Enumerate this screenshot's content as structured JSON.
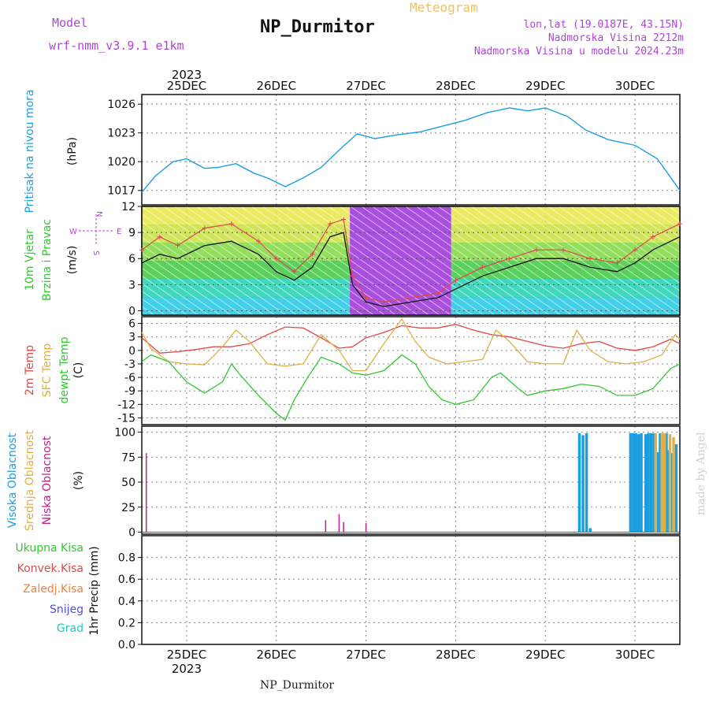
{
  "header": {
    "model_label": "Model",
    "model_run": "wrf-nmm_v3.9.1 e1km",
    "title": "NP_Durmitor",
    "subtitle": "Meteogram",
    "location": "lon,lat (19.0187E, 43.15N)",
    "elevation": "Nadmorska Visina 2212m",
    "model_elevation": "Nadmorska Visina u modelu 2024.23m"
  },
  "footer": {
    "station": "NP_Durmitor",
    "credit": "made by Angel"
  },
  "time_axis": {
    "year": "2023",
    "days": [
      "25DEC",
      "26DEC",
      "27DEC",
      "28DEC",
      "29DEC",
      "30DEC"
    ]
  },
  "colors": {
    "pressure": "#1aa0e0",
    "temp2m": "#e04848",
    "sfc_temp": "#e0b048",
    "dewpt": "#30c830",
    "wind_speed": "#111111",
    "gust": "#e04848",
    "high_cloud": "#1aa0e0",
    "mid_cloud": "#e0b048",
    "low_cloud": "#c0208a"
  },
  "chart_data": [
    {
      "type": "line",
      "panel": "pressure",
      "ylabel_left": "Pritisak na nivou mora",
      "ylabel_unit": "(hPa)",
      "ylim": [
        1015.5,
        1027
      ],
      "yticks": [
        1017,
        1020,
        1023,
        1026
      ],
      "grid": true,
      "x_days": [
        24.5,
        24.65,
        24.85,
        25.0,
        25.2,
        25.35,
        25.55,
        25.75,
        25.9,
        26.1,
        26.3,
        26.5,
        26.7,
        26.9,
        27.1,
        27.35,
        27.6,
        27.85,
        28.1,
        28.35,
        28.6,
        28.8,
        29.0,
        29.25,
        29.45,
        29.7,
        30.0,
        30.25,
        30.5
      ],
      "values": [
        1016.8,
        1018.5,
        1020.0,
        1020.3,
        1019.3,
        1019.4,
        1019.8,
        1018.8,
        1018.3,
        1017.4,
        1018.3,
        1019.4,
        1021.2,
        1022.9,
        1022.4,
        1022.8,
        1023.1,
        1023.7,
        1024.3,
        1025.1,
        1025.6,
        1025.3,
        1025.6,
        1024.7,
        1023.3,
        1022.3,
        1021.7,
        1020.3,
        1017.0
      ]
    },
    {
      "type": "line",
      "panel": "wind",
      "ylabel_left": "10m Vjetar",
      "ylabel_left2": "Brzina i Pravac",
      "ylabel_unit": "(m/s)",
      "compass": [
        "N",
        "W",
        "E",
        "S"
      ],
      "ylim": [
        -0.5,
        12
      ],
      "yticks": [
        0,
        3,
        6,
        9,
        12
      ],
      "grid": true,
      "series": [
        {
          "name": "wind_speed",
          "x_days": [
            24.5,
            24.7,
            24.9,
            25.2,
            25.5,
            25.8,
            26.0,
            26.2,
            26.4,
            26.6,
            26.75,
            26.85,
            27.0,
            27.2,
            27.5,
            27.8,
            28.0,
            28.3,
            28.6,
            28.9,
            29.2,
            29.5,
            29.8,
            30.0,
            30.2,
            30.5
          ],
          "values": [
            5.5,
            6.5,
            6.0,
            7.5,
            8.0,
            6.5,
            4.5,
            3.5,
            5.0,
            8.5,
            9.0,
            3.0,
            1.0,
            0.5,
            1.0,
            1.5,
            2.5,
            4.0,
            5.0,
            6.0,
            6.0,
            5.0,
            4.5,
            5.5,
            7.0,
            8.5
          ]
        },
        {
          "name": "gust",
          "x_days": [
            24.5,
            24.7,
            24.9,
            25.2,
            25.5,
            25.8,
            26.0,
            26.2,
            26.4,
            26.6,
            26.75,
            26.85,
            27.0,
            27.2,
            27.5,
            27.8,
            28.0,
            28.3,
            28.6,
            28.9,
            29.2,
            29.5,
            29.8,
            30.0,
            30.2,
            30.5
          ],
          "values": [
            7.0,
            8.5,
            7.5,
            9.5,
            10.0,
            8.0,
            6.0,
            4.5,
            6.5,
            10.0,
            10.5,
            4.0,
            1.5,
            1.0,
            1.5,
            2.0,
            3.5,
            5.0,
            6.0,
            7.0,
            7.0,
            6.0,
            5.5,
            7.0,
            8.5,
            10.0
          ]
        }
      ]
    },
    {
      "type": "line",
      "panel": "temperature",
      "ylabel_left": "2m Temp",
      "ylabel_left2": "SFC Temp",
      "ylabel_left3": "dewpt Temp",
      "ylabel_unit": "(C)",
      "ylim": [
        -16.5,
        7.5
      ],
      "yticks": [
        -15,
        -12,
        -9,
        -6,
        -3,
        0,
        3,
        6
      ],
      "grid": true,
      "series": [
        {
          "name": "temp2m",
          "x_days": [
            24.5,
            24.7,
            24.9,
            25.1,
            25.3,
            25.5,
            25.7,
            25.9,
            26.1,
            26.3,
            26.5,
            26.7,
            26.85,
            27.0,
            27.2,
            27.4,
            27.6,
            27.8,
            28.0,
            28.2,
            28.4,
            28.6,
            28.8,
            29.0,
            29.2,
            29.4,
            29.6,
            29.8,
            30.0,
            30.2,
            30.4,
            30.5
          ],
          "values": [
            2.8,
            -0.6,
            -0.3,
            0.2,
            0.8,
            0.8,
            1.5,
            3.5,
            5.2,
            5.0,
            2.8,
            0.5,
            0.8,
            2.8,
            4.0,
            5.5,
            5.0,
            5.0,
            5.8,
            4.5,
            3.5,
            3.0,
            2.0,
            1.0,
            0.5,
            1.5,
            2.0,
            0.5,
            0.0,
            0.8,
            2.5,
            1.5
          ]
        },
        {
          "name": "sfc_temp",
          "x_days": [
            24.5,
            24.6,
            24.8,
            25.0,
            25.2,
            25.4,
            25.55,
            25.7,
            25.9,
            26.1,
            26.3,
            26.5,
            26.7,
            26.85,
            27.0,
            27.2,
            27.4,
            27.55,
            27.7,
            27.9,
            28.1,
            28.3,
            28.45,
            28.6,
            28.8,
            29.0,
            29.2,
            29.35,
            29.5,
            29.7,
            29.9,
            30.1,
            30.3,
            30.45,
            30.5
          ],
          "values": [
            4.0,
            0.5,
            -2.5,
            -3.0,
            -3.2,
            0.8,
            4.5,
            2.0,
            -3.0,
            -3.5,
            -3.0,
            3.5,
            0.0,
            -4.5,
            -4.5,
            1.5,
            7.0,
            2.0,
            -1.5,
            -3.0,
            -2.5,
            -2.0,
            4.5,
            2.0,
            -2.5,
            -3.0,
            -3.0,
            4.5,
            0.0,
            -2.5,
            -3.0,
            -2.5,
            -1.0,
            3.5,
            2.5
          ]
        },
        {
          "name": "dewpt",
          "x_days": [
            24.5,
            24.6,
            24.8,
            25.0,
            25.2,
            25.4,
            25.5,
            25.6,
            25.8,
            26.0,
            26.1,
            26.2,
            26.35,
            26.5,
            26.7,
            26.85,
            27.0,
            27.2,
            27.4,
            27.55,
            27.7,
            27.85,
            28.0,
            28.2,
            28.4,
            28.5,
            28.7,
            28.8,
            29.0,
            29.2,
            29.4,
            29.6,
            29.8,
            30.0,
            30.2,
            30.4,
            30.5
          ],
          "values": [
            -2.5,
            -1.0,
            -2.5,
            -7.0,
            -9.5,
            -7.0,
            -3.0,
            -5.5,
            -10.0,
            -14.0,
            -15.5,
            -11.0,
            -6.0,
            -1.5,
            -3.0,
            -5.0,
            -5.5,
            -4.5,
            -1.0,
            -3.0,
            -8.0,
            -11.0,
            -12.0,
            -11.0,
            -6.0,
            -5.0,
            -8.5,
            -10.0,
            -9.0,
            -8.5,
            -7.5,
            -8.0,
            -10.0,
            -10.0,
            -8.5,
            -4.0,
            -3.0
          ]
        }
      ]
    },
    {
      "type": "bar",
      "panel": "cloud",
      "ylabel_left": "Visoka Oblacnost",
      "ylabel_left2": "Srednja Oblacnost",
      "ylabel_left3": "Niska Oblacnost",
      "ylabel_unit": "(%)",
      "ylim": [
        -2,
        106
      ],
      "yticks": [
        0,
        25,
        50,
        75,
        100
      ],
      "grid": true,
      "series": [
        {
          "name": "low_cloud",
          "x_days": [
            24.55,
            26.55,
            26.7,
            26.75,
            27.0
          ],
          "values": [
            79,
            12,
            18,
            10,
            9
          ]
        },
        {
          "name": "high_cloud",
          "x_days": [
            29.38,
            29.42,
            29.46,
            29.5,
            29.95,
            29.98,
            30.01,
            30.04,
            30.07,
            30.12,
            30.15,
            30.18,
            30.21,
            30.25,
            30.28,
            30.31,
            30.35,
            30.38,
            30.41,
            30.46
          ],
          "values": [
            99,
            97,
            99,
            4,
            99,
            99,
            99,
            98,
            99,
            98,
            99,
            99,
            99,
            80,
            99,
            99,
            99,
            82,
            79,
            88
          ]
        },
        {
          "name": "mid_cloud",
          "x_days": [
            30.23,
            30.3,
            30.33,
            30.39,
            30.43
          ],
          "values": [
            99,
            99,
            99,
            98,
            95
          ]
        }
      ]
    },
    {
      "type": "bar",
      "panel": "precip",
      "ylabel_unit": "1hr Precip (mm)",
      "legend": [
        "Ukupna Kisa",
        "Konvek.Kisa",
        "Zaledj.Kisa",
        "Snijeg",
        "Grad"
      ],
      "legend_colors": [
        "#30c830",
        "#e04848",
        "#f08040",
        "#5050e0",
        "#20c8c8"
      ],
      "ylim": [
        0,
        1.0
      ],
      "yticks": [
        0,
        0.2,
        0.4,
        0.6,
        0.8
      ],
      "grid": true,
      "values": []
    }
  ]
}
